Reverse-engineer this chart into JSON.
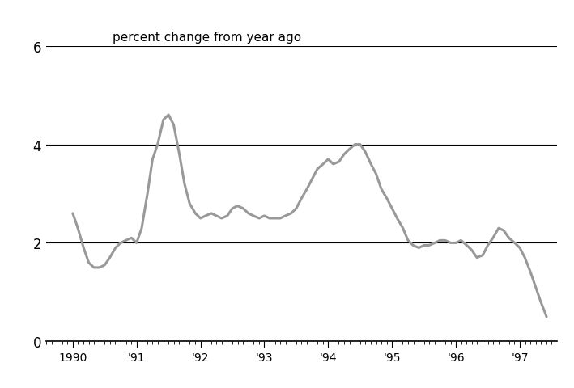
{
  "title": "percent change from year ago",
  "ylim": [
    0,
    6
  ],
  "yticks": [
    0,
    2,
    4,
    6
  ],
  "line_color": "#999999",
  "line_width": 2.2,
  "background_color": "#ffffff",
  "xtick_labels": [
    "1990",
    "'91",
    "'92",
    "'93",
    "'94",
    "'95",
    "'96",
    "'97"
  ],
  "xtick_positions": [
    1990,
    1991,
    1992,
    1993,
    1994,
    1995,
    1996,
    1997
  ],
  "data": [
    [
      1990.0,
      2.6
    ],
    [
      1990.08,
      2.3
    ],
    [
      1990.17,
      1.9
    ],
    [
      1990.25,
      1.6
    ],
    [
      1990.33,
      1.5
    ],
    [
      1990.42,
      1.5
    ],
    [
      1990.5,
      1.55
    ],
    [
      1990.58,
      1.7
    ],
    [
      1990.67,
      1.9
    ],
    [
      1990.75,
      2.0
    ],
    [
      1990.83,
      2.05
    ],
    [
      1990.92,
      2.1
    ],
    [
      1991.0,
      2.0
    ],
    [
      1991.08,
      2.3
    ],
    [
      1991.17,
      3.0
    ],
    [
      1991.25,
      3.7
    ],
    [
      1991.33,
      4.0
    ],
    [
      1991.42,
      4.5
    ],
    [
      1991.5,
      4.6
    ],
    [
      1991.58,
      4.4
    ],
    [
      1991.67,
      3.8
    ],
    [
      1991.75,
      3.2
    ],
    [
      1991.83,
      2.8
    ],
    [
      1991.92,
      2.6
    ],
    [
      1992.0,
      2.5
    ],
    [
      1992.08,
      2.55
    ],
    [
      1992.17,
      2.6
    ],
    [
      1992.25,
      2.55
    ],
    [
      1992.33,
      2.5
    ],
    [
      1992.42,
      2.55
    ],
    [
      1992.5,
      2.7
    ],
    [
      1992.58,
      2.75
    ],
    [
      1992.67,
      2.7
    ],
    [
      1992.75,
      2.6
    ],
    [
      1992.83,
      2.55
    ],
    [
      1992.92,
      2.5
    ],
    [
      1993.0,
      2.55
    ],
    [
      1993.08,
      2.5
    ],
    [
      1993.17,
      2.5
    ],
    [
      1993.25,
      2.5
    ],
    [
      1993.33,
      2.55
    ],
    [
      1993.42,
      2.6
    ],
    [
      1993.5,
      2.7
    ],
    [
      1993.58,
      2.9
    ],
    [
      1993.67,
      3.1
    ],
    [
      1993.75,
      3.3
    ],
    [
      1993.83,
      3.5
    ],
    [
      1993.92,
      3.6
    ],
    [
      1994.0,
      3.7
    ],
    [
      1994.08,
      3.6
    ],
    [
      1994.17,
      3.65
    ],
    [
      1994.25,
      3.8
    ],
    [
      1994.33,
      3.9
    ],
    [
      1994.42,
      4.0
    ],
    [
      1994.5,
      4.0
    ],
    [
      1994.58,
      3.85
    ],
    [
      1994.67,
      3.6
    ],
    [
      1994.75,
      3.4
    ],
    [
      1994.83,
      3.1
    ],
    [
      1994.92,
      2.9
    ],
    [
      1995.0,
      2.7
    ],
    [
      1995.08,
      2.5
    ],
    [
      1995.17,
      2.3
    ],
    [
      1995.25,
      2.05
    ],
    [
      1995.33,
      1.95
    ],
    [
      1995.42,
      1.9
    ],
    [
      1995.5,
      1.95
    ],
    [
      1995.58,
      1.95
    ],
    [
      1995.67,
      2.0
    ],
    [
      1995.75,
      2.05
    ],
    [
      1995.83,
      2.05
    ],
    [
      1995.92,
      2.0
    ],
    [
      1996.0,
      2.0
    ],
    [
      1996.08,
      2.05
    ],
    [
      1996.17,
      1.95
    ],
    [
      1996.25,
      1.85
    ],
    [
      1996.33,
      1.7
    ],
    [
      1996.42,
      1.75
    ],
    [
      1996.5,
      1.95
    ],
    [
      1996.58,
      2.1
    ],
    [
      1996.67,
      2.3
    ],
    [
      1996.75,
      2.25
    ],
    [
      1996.83,
      2.1
    ],
    [
      1996.92,
      2.0
    ],
    [
      1997.0,
      1.9
    ],
    [
      1997.08,
      1.7
    ],
    [
      1997.17,
      1.4
    ],
    [
      1997.25,
      1.1
    ],
    [
      1997.33,
      0.8
    ],
    [
      1997.42,
      0.5
    ]
  ]
}
